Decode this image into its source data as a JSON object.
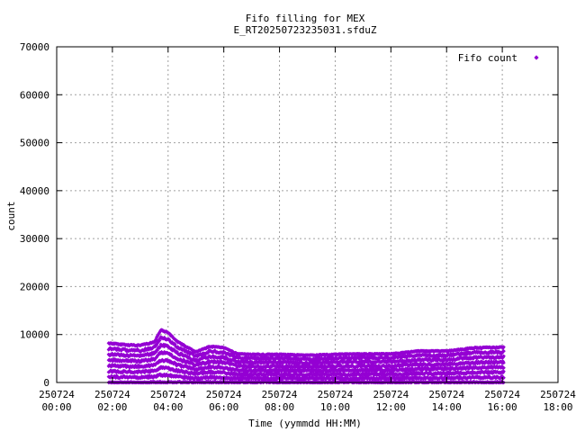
{
  "chart_data": {
    "type": "scatter",
    "title": "Fifo filling for MEX",
    "subtitle": "E_RT20250723235031.sfduZ",
    "xlabel": "Time (yymmdd HH:MM)",
    "ylabel": "count",
    "xlim_hours": [
      0,
      18
    ],
    "ylim": [
      0,
      70000
    ],
    "yticks": [
      "0",
      "10000",
      "20000",
      "30000",
      "40000",
      "50000",
      "60000",
      "70000"
    ],
    "xticks": [
      {
        "date": "250724",
        "time": "00:00"
      },
      {
        "date": "250724",
        "time": "02:00"
      },
      {
        "date": "250724",
        "time": "04:00"
      },
      {
        "date": "250724",
        "time": "06:00"
      },
      {
        "date": "250724",
        "time": "08:00"
      },
      {
        "date": "250724",
        "time": "10:00"
      },
      {
        "date": "250724",
        "time": "12:00"
      },
      {
        "date": "250724",
        "time": "14:00"
      },
      {
        "date": "250724",
        "time": "16:00"
      },
      {
        "date": "250724",
        "time": "18:00"
      }
    ],
    "grid": true,
    "legend_position": "top-right",
    "series": [
      {
        "name": "Fifo count",
        "color": "#9400d3",
        "marker": "diamond",
        "x_start": "250724 01:52",
        "x_end": "250724 16:03",
        "envelope_max": [
          [
            "250724 02:00",
            8200
          ],
          [
            "250724 02:30",
            7900
          ],
          [
            "250724 03:00",
            7800
          ],
          [
            "250724 03:30",
            8500
          ],
          [
            "250724 03:45",
            11000
          ],
          [
            "250724 04:00",
            10500
          ],
          [
            "250724 04:20",
            8600
          ],
          [
            "250724 05:00",
            6400
          ],
          [
            "250724 05:30",
            7600
          ],
          [
            "250724 06:00",
            7300
          ],
          [
            "250724 06:30",
            6000
          ],
          [
            "250724 07:00",
            5900
          ],
          [
            "250724 08:00",
            5900
          ],
          [
            "250724 09:00",
            5700
          ],
          [
            "250724 10:00",
            5900
          ],
          [
            "250724 11:00",
            6000
          ],
          [
            "250724 12:00",
            6000
          ],
          [
            "250724 13:00",
            6600
          ],
          [
            "250724 14:00",
            6600
          ],
          [
            "250724 15:00",
            7300
          ],
          [
            "250724 16:00",
            7400
          ]
        ]
      }
    ]
  }
}
